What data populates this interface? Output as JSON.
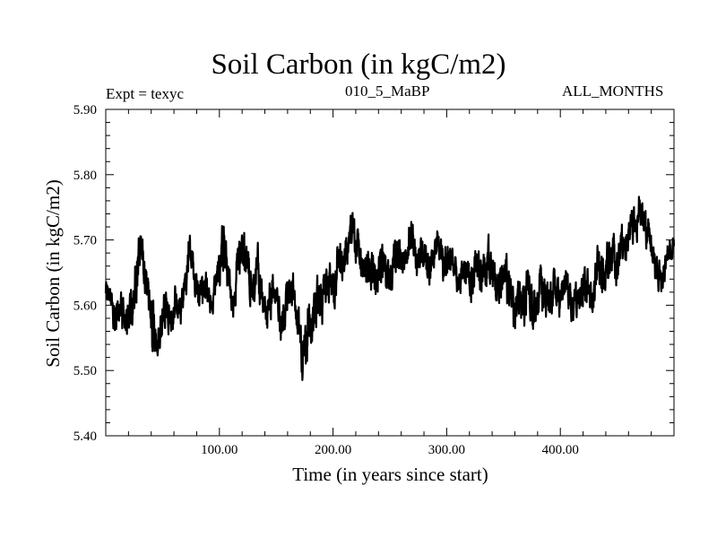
{
  "chart_data": {
    "type": "line",
    "title": "Soil Carbon (in kgC/m2)",
    "subtitle_left": "Expt = texyc",
    "subtitle_center": "010_5_MaBP",
    "subtitle_right": "ALL_MONTHS",
    "xlabel": "Time (in years since start)",
    "ylabel": "Soil Carbon (in kgC/m2)",
    "xlim": [
      0,
      500
    ],
    "ylim": [
      5.4,
      5.9
    ],
    "x_ticks": [
      {
        "value": 100,
        "label": "100.00"
      },
      {
        "value": 200,
        "label": "200.00"
      },
      {
        "value": 300,
        "label": "300.00"
      },
      {
        "value": 400,
        "label": "400.00"
      }
    ],
    "y_ticks": [
      {
        "value": 5.4,
        "label": "5.40"
      },
      {
        "value": 5.5,
        "label": "5.50"
      },
      {
        "value": 5.6,
        "label": "5.60"
      },
      {
        "value": 5.7,
        "label": "5.70"
      },
      {
        "value": 5.8,
        "label": "5.80"
      },
      {
        "value": 5.9,
        "label": "5.90"
      }
    ],
    "x_minor_step": 20,
    "y_minor_step": 0.02,
    "grid": false,
    "series": [
      {
        "color": "#000000",
        "envelope": {
          "x": [
            0,
            5,
            8,
            12,
            18,
            24,
            28,
            31,
            34,
            38,
            42,
            46,
            52,
            58,
            62,
            66,
            70,
            74,
            78,
            82,
            88,
            94,
            98,
            104,
            108,
            112,
            116,
            120,
            126,
            130,
            134,
            138,
            142,
            146,
            150,
            154,
            158,
            162,
            166,
            170,
            174,
            178,
            182,
            186,
            190,
            196,
            200,
            204,
            208,
            214,
            218,
            222,
            226,
            232,
            238,
            244,
            250,
            256,
            262,
            268,
            274,
            280,
            286,
            292,
            298,
            304,
            310,
            316,
            322,
            326,
            332,
            338,
            344,
            350,
            356,
            360,
            364,
            368,
            372,
            376,
            382,
            388,
            394,
            400,
            404,
            410,
            416,
            422,
            428,
            434,
            440,
            446,
            450,
            454,
            458,
            462,
            466,
            470,
            474,
            478,
            482,
            486,
            490,
            494,
            496,
            498,
            500
          ],
          "upper": [
            5.66,
            5.63,
            5.6,
            5.65,
            5.62,
            5.66,
            5.71,
            5.74,
            5.7,
            5.66,
            5.62,
            5.58,
            5.64,
            5.61,
            5.65,
            5.62,
            5.68,
            5.74,
            5.66,
            5.64,
            5.67,
            5.62,
            5.7,
            5.75,
            5.68,
            5.63,
            5.72,
            5.75,
            5.7,
            5.66,
            5.71,
            5.66,
            5.62,
            5.68,
            5.66,
            5.61,
            5.63,
            5.68,
            5.66,
            5.61,
            5.58,
            5.63,
            5.61,
            5.67,
            5.65,
            5.69,
            5.67,
            5.72,
            5.7,
            5.74,
            5.77,
            5.72,
            5.7,
            5.71,
            5.68,
            5.71,
            5.68,
            5.73,
            5.7,
            5.75,
            5.71,
            5.73,
            5.7,
            5.74,
            5.7,
            5.72,
            5.67,
            5.71,
            5.67,
            5.71,
            5.69,
            5.73,
            5.67,
            5.7,
            5.68,
            5.64,
            5.67,
            5.65,
            5.68,
            5.64,
            5.68,
            5.66,
            5.67,
            5.65,
            5.68,
            5.64,
            5.65,
            5.68,
            5.64,
            5.72,
            5.7,
            5.73,
            5.69,
            5.75,
            5.73,
            5.78,
            5.76,
            5.8,
            5.77,
            5.75,
            5.71,
            5.68,
            5.66,
            5.7,
            5.72,
            5.7,
            5.72
          ],
          "lower": [
            5.6,
            5.58,
            5.53,
            5.55,
            5.54,
            5.56,
            5.59,
            5.65,
            5.6,
            5.56,
            5.49,
            5.52,
            5.55,
            5.54,
            5.57,
            5.55,
            5.6,
            5.64,
            5.59,
            5.58,
            5.59,
            5.57,
            5.61,
            5.64,
            5.59,
            5.57,
            5.61,
            5.64,
            5.6,
            5.58,
            5.6,
            5.57,
            5.55,
            5.57,
            5.58,
            5.53,
            5.55,
            5.58,
            5.57,
            5.52,
            5.45,
            5.5,
            5.53,
            5.56,
            5.55,
            5.59,
            5.58,
            5.61,
            5.62,
            5.66,
            5.68,
            5.63,
            5.61,
            5.62,
            5.6,
            5.62,
            5.6,
            5.64,
            5.63,
            5.65,
            5.63,
            5.64,
            5.62,
            5.65,
            5.62,
            5.63,
            5.6,
            5.62,
            5.59,
            5.61,
            5.6,
            5.62,
            5.58,
            5.59,
            5.57,
            5.53,
            5.56,
            5.55,
            5.57,
            5.53,
            5.57,
            5.56,
            5.58,
            5.57,
            5.59,
            5.56,
            5.57,
            5.59,
            5.56,
            5.61,
            5.6,
            5.63,
            5.61,
            5.66,
            5.65,
            5.69,
            5.68,
            5.7,
            5.68,
            5.66,
            5.63,
            5.61,
            5.61,
            5.64,
            5.66,
            5.65,
            5.66
          ]
        }
      }
    ]
  }
}
